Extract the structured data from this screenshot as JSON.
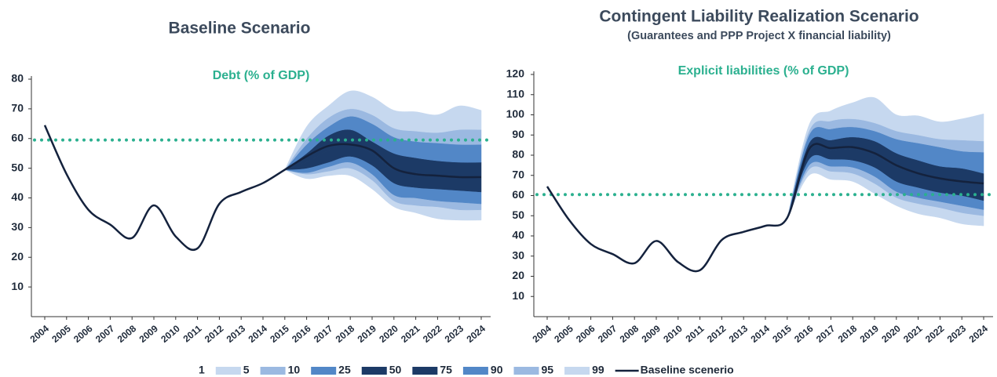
{
  "chart_data": [
    {
      "type": "fan",
      "title": "Baseline Scenario",
      "annotation": "Debt (% of GDP)",
      "categories": [
        "2004",
        "2005",
        "2006",
        "2007",
        "2008",
        "2009",
        "2010",
        "2011",
        "2012",
        "2013",
        "2014",
        "2015",
        "2016",
        "2017",
        "2018",
        "2019",
        "2020",
        "2021",
        "2022",
        "2023",
        "2024"
      ],
      "ylim": [
        0,
        80
      ],
      "yticks": [
        10,
        20,
        30,
        40,
        50,
        60,
        70,
        80
      ],
      "reference_line": {
        "value": 59.5,
        "color": "#2bb08f"
      },
      "legend": "bottom",
      "series": [
        {
          "name": "1",
          "kind": "band",
          "color": "#ffffff",
          "values": [
            null,
            null,
            null,
            null,
            null,
            null,
            null,
            null,
            null,
            null,
            null,
            49.5,
            46.5,
            47.5,
            47.5,
            43,
            37,
            35,
            33,
            32.5,
            32.5
          ]
        },
        {
          "name": "5",
          "kind": "band",
          "color": "#c6d8ef",
          "values": [
            null,
            null,
            null,
            null,
            null,
            null,
            null,
            null,
            null,
            null,
            null,
            49.5,
            48,
            49,
            50,
            46,
            39,
            37.5,
            37,
            36,
            36
          ]
        },
        {
          "name": "10",
          "kind": "band",
          "color": "#9bb9e1",
          "values": [
            null,
            null,
            null,
            null,
            null,
            null,
            null,
            null,
            null,
            null,
            null,
            49.5,
            48.5,
            50.5,
            52,
            48,
            41,
            40,
            39,
            38.5,
            38
          ]
        },
        {
          "name": "25",
          "kind": "band",
          "color": "#5287c7",
          "values": [
            null,
            null,
            null,
            null,
            null,
            null,
            null,
            null,
            null,
            null,
            null,
            49.5,
            50,
            52,
            54,
            51,
            45,
            43.5,
            43,
            42.5,
            42
          ]
        },
        {
          "name": "50",
          "kind": "band",
          "color": "#1c3a66",
          "values": [
            null,
            null,
            null,
            null,
            null,
            null,
            null,
            null,
            null,
            null,
            null,
            49.5,
            52,
            56,
            58,
            55,
            49.5,
            48.5,
            47.5,
            47,
            47
          ]
        },
        {
          "name": "75",
          "kind": "band",
          "color": "#1c3a66",
          "values": [
            null,
            null,
            null,
            null,
            null,
            null,
            null,
            null,
            null,
            null,
            null,
            49.5,
            55,
            61,
            63,
            59,
            55,
            53.5,
            52.5,
            52,
            52
          ]
        },
        {
          "name": "90",
          "kind": "band",
          "color": "#5287c7",
          "values": [
            null,
            null,
            null,
            null,
            null,
            null,
            null,
            null,
            null,
            null,
            null,
            49.5,
            58,
            64,
            67.5,
            65,
            60.5,
            59,
            58.5,
            58,
            58
          ]
        },
        {
          "name": "95",
          "kind": "band",
          "color": "#9bb9e1",
          "values": [
            null,
            null,
            null,
            null,
            null,
            null,
            null,
            null,
            null,
            null,
            null,
            49.5,
            60,
            67,
            70,
            68,
            63.5,
            62.5,
            62,
            63,
            63
          ]
        },
        {
          "name": "99",
          "kind": "band",
          "color": "#c6d8ef",
          "values": [
            null,
            null,
            null,
            null,
            null,
            null,
            null,
            null,
            null,
            null,
            null,
            49.5,
            64,
            71,
            76,
            74,
            69.5,
            69,
            68,
            71,
            69.5
          ]
        },
        {
          "name": "Baseline scenerio",
          "kind": "line",
          "color": "#14223d",
          "values": [
            64.5,
            48,
            36,
            31,
            26.5,
            37.5,
            27,
            23,
            38,
            42,
            45,
            49.5,
            54,
            57.5,
            58,
            56,
            50,
            48,
            47.5,
            47,
            47
          ]
        }
      ]
    },
    {
      "type": "fan",
      "title": "Contingent Liability Realization Scenario",
      "subtitle": "(Guarantees and PPP Project X financial liability)",
      "annotation": "Explicit liabilities (% of GDP)",
      "categories": [
        "2004",
        "2005",
        "2006",
        "2007",
        "2008",
        "2009",
        "2010",
        "2011",
        "2012",
        "2013",
        "2014",
        "2015",
        "2016",
        "2017",
        "2018",
        "2019",
        "2020",
        "2021",
        "2022",
        "2023",
        "2024"
      ],
      "ylim": [
        0,
        120
      ],
      "yticks": [
        10,
        20,
        30,
        40,
        50,
        60,
        70,
        80,
        90,
        100,
        110,
        120
      ],
      "reference_line": {
        "value": 60.5,
        "color": "#2bb08f"
      },
      "series": [
        {
          "kind": "band",
          "color": "#ffffff",
          "values": [
            null,
            null,
            null,
            null,
            null,
            null,
            null,
            null,
            null,
            null,
            null,
            49,
            70,
            68,
            67,
            61,
            55,
            51,
            49,
            46,
            45
          ]
        },
        {
          "kind": "band",
          "color": "#c6d8ef",
          "values": [
            null,
            null,
            null,
            null,
            null,
            null,
            null,
            null,
            null,
            null,
            null,
            49,
            73,
            72,
            71,
            66,
            59,
            56,
            54,
            51.5,
            50
          ]
        },
        {
          "kind": "band",
          "color": "#9bb9e1",
          "values": [
            null,
            null,
            null,
            null,
            null,
            null,
            null,
            null,
            null,
            null,
            null,
            49,
            75,
            74.5,
            74,
            69.5,
            62,
            59,
            57,
            55,
            53
          ]
        },
        {
          "kind": "band",
          "color": "#5287c7",
          "values": [
            null,
            null,
            null,
            null,
            null,
            null,
            null,
            null,
            null,
            null,
            null,
            49,
            78,
            78,
            77.5,
            74,
            67,
            64,
            61.5,
            60,
            57.5
          ]
        },
        {
          "kind": "band",
          "color": "#1c3a66",
          "values": [
            null,
            null,
            null,
            null,
            null,
            null,
            null,
            null,
            null,
            null,
            null,
            49,
            82,
            82.5,
            83,
            80,
            74,
            71,
            68.5,
            67,
            65.5
          ]
        },
        {
          "kind": "band",
          "color": "#1c3a66",
          "values": [
            null,
            null,
            null,
            null,
            null,
            null,
            null,
            null,
            null,
            null,
            null,
            49,
            86,
            87.5,
            89,
            87,
            81,
            77.5,
            74.5,
            73.5,
            71
          ]
        },
        {
          "kind": "band",
          "color": "#5287c7",
          "values": [
            null,
            null,
            null,
            null,
            null,
            null,
            null,
            null,
            null,
            null,
            null,
            49,
            90,
            93,
            94,
            92,
            88,
            86,
            84,
            82,
            81.5
          ]
        },
        {
          "kind": "band",
          "color": "#9bb9e1",
          "values": [
            null,
            null,
            null,
            null,
            null,
            null,
            null,
            null,
            null,
            null,
            null,
            49,
            92,
            97,
            98,
            96,
            92,
            90,
            88,
            87.5,
            87
          ]
        },
        {
          "kind": "band",
          "color": "#c6d8ef",
          "values": [
            null,
            null,
            null,
            null,
            null,
            null,
            null,
            null,
            null,
            null,
            null,
            49,
            95,
            102,
            106,
            108.5,
            100,
            99.5,
            96.5,
            98,
            100.5
          ]
        },
        {
          "kind": "line",
          "color": "#14223d",
          "values": [
            64.5,
            48,
            36,
            31,
            26.5,
            37.5,
            27,
            23,
            38,
            42,
            45,
            49,
            83,
            83.5,
            84,
            81,
            75,
            71,
            68.5,
            67,
            66
          ]
        }
      ]
    }
  ]
}
